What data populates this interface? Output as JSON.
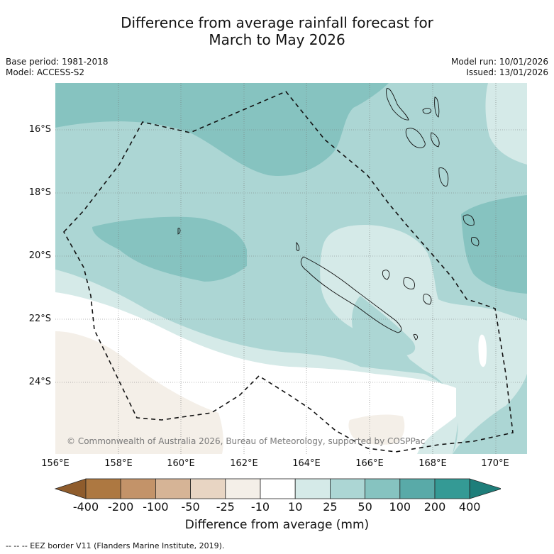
{
  "title": {
    "line1": "Difference from average rainfall forecast for",
    "line2": "March to May 2026"
  },
  "meta_left": {
    "base_period": "Base period: 1981-2018",
    "model": "Model: ACCESS-S2"
  },
  "meta_right": {
    "model_run": "Model run: 10/01/2026",
    "issued": "Issued: 13/01/2026"
  },
  "map": {
    "lat_labels": [
      "16°S",
      "18°S",
      "20°S",
      "22°S",
      "24°S"
    ],
    "lon_labels": [
      "156°E",
      "158°E",
      "160°E",
      "162°E",
      "164°E",
      "166°E",
      "168°E",
      "170°E"
    ],
    "copyright": "© Commonwealth of Australia 2026, Bureau of Meteorology, supported by COSPPac"
  },
  "colorbar": {
    "title": "Difference from average (mm)",
    "ticks": [
      "-400",
      "-200",
      "-100",
      "-50",
      "-25",
      "-10",
      "10",
      "25",
      "50",
      "100",
      "200",
      "400"
    ],
    "colors": [
      "#8f5c2c",
      "#ad7841",
      "#c39369",
      "#d6b496",
      "#e8d5c3",
      "#f4efe8",
      "#ffffff",
      "#d5eae8",
      "#acd6d4",
      "#86c3c0",
      "#59aaa8",
      "#349a95",
      "#1e7e7a"
    ]
  },
  "footer": "--  --  -- EEZ border V11 (Flanders Marine Institute, 2019)."
}
